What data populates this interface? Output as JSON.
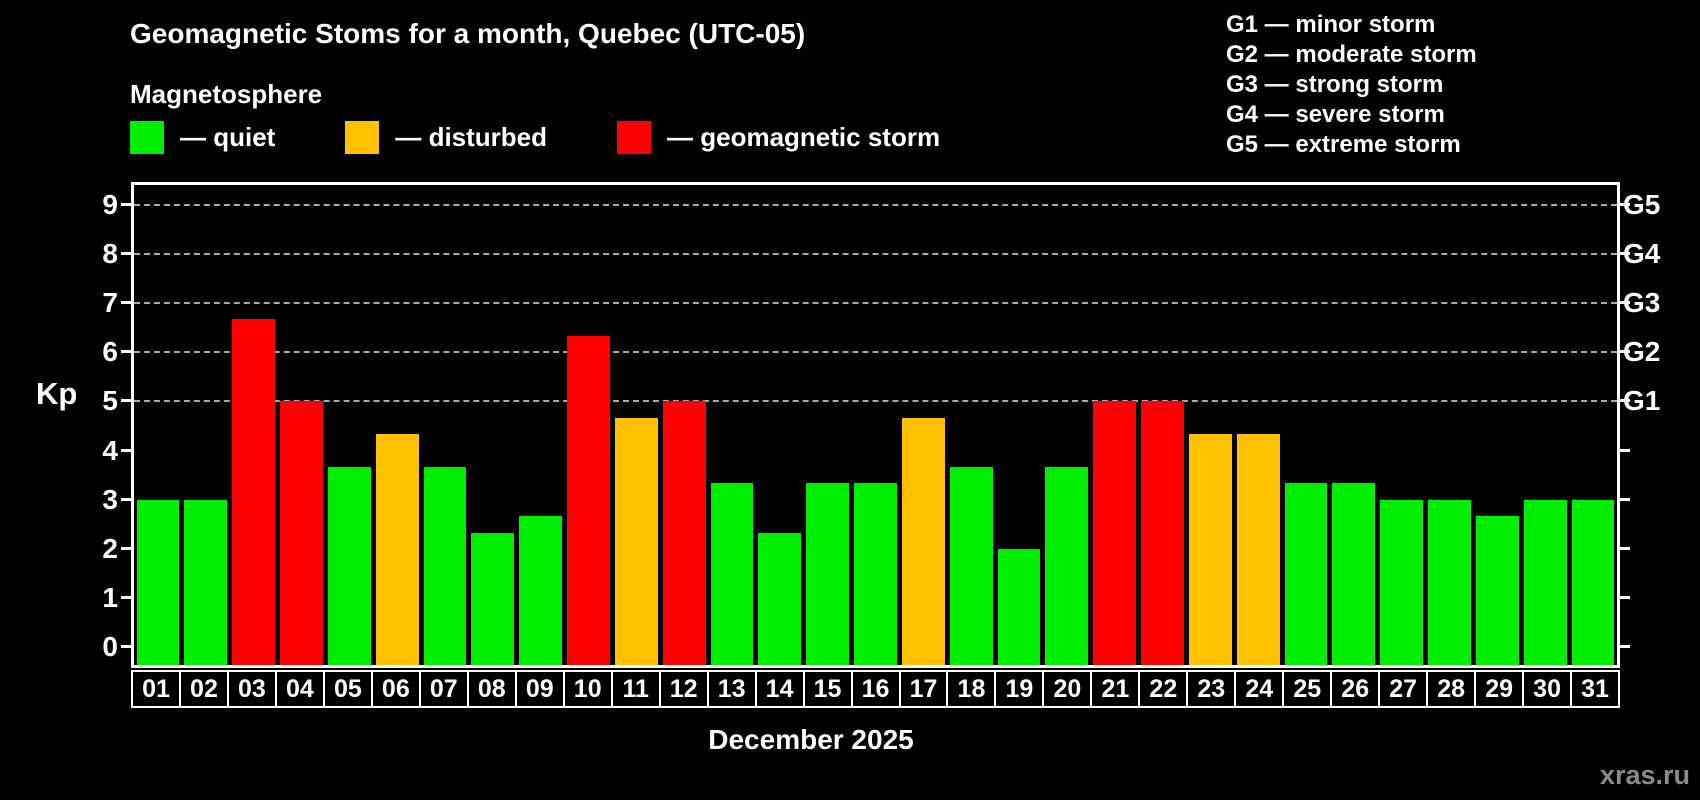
{
  "title": "Geomagnetic Stoms for a month, Quebec (UTC-05)",
  "subtitle": "Magnetosphere",
  "legend": [
    {
      "key": "quiet",
      "label": "— quiet",
      "color": "#00ee00"
    },
    {
      "key": "disturbed",
      "label": "— disturbed",
      "color": "#ffc000"
    },
    {
      "key": "storm",
      "label": "— geomagnetic storm",
      "color": "#ff0000"
    }
  ],
  "g_legend": [
    "G1 — minor storm",
    "G2 — moderate storm",
    "G3 — strong storm",
    "G4 — severe storm",
    "G5 — extreme storm"
  ],
  "ylabel": "Kp",
  "xlabel": "December 2025",
  "watermark": "xras.ru",
  "chart_data": {
    "type": "bar",
    "title": "Geomagnetic Stoms for a month, Quebec (UTC-05)",
    "xlabel": "December 2025",
    "ylabel": "Kp",
    "ylim": [
      0,
      9
    ],
    "yticks": [
      0,
      1,
      2,
      3,
      4,
      5,
      6,
      7,
      8,
      9
    ],
    "gridlines_at": [
      5,
      6,
      7,
      8,
      9
    ],
    "grid_style": "horizontal dashed at storm levels only",
    "legend_position": "top-left",
    "right_axis_labels": {
      "5": "G1",
      "6": "G2",
      "7": "G3",
      "8": "G4",
      "9": "G5"
    },
    "colors": {
      "quiet": "#00ee00",
      "disturbed": "#ffc000",
      "storm": "#ff0000"
    },
    "categories": [
      "01",
      "02",
      "03",
      "04",
      "05",
      "06",
      "07",
      "08",
      "09",
      "10",
      "11",
      "12",
      "13",
      "14",
      "15",
      "16",
      "17",
      "18",
      "19",
      "20",
      "21",
      "22",
      "23",
      "24",
      "25",
      "26",
      "27",
      "28",
      "29",
      "30",
      "31"
    ],
    "values": [
      3.0,
      3.0,
      6.67,
      5.0,
      3.67,
      4.33,
      3.67,
      2.33,
      2.67,
      6.33,
      4.67,
      5.0,
      3.33,
      2.33,
      3.33,
      3.33,
      4.67,
      3.67,
      2.0,
      3.67,
      5.0,
      5.0,
      4.33,
      4.33,
      3.33,
      3.33,
      3.0,
      3.0,
      2.67,
      3.0,
      3.0
    ],
    "statuses": [
      "quiet",
      "quiet",
      "storm",
      "storm",
      "quiet",
      "disturbed",
      "quiet",
      "quiet",
      "quiet",
      "storm",
      "disturbed",
      "storm",
      "quiet",
      "quiet",
      "quiet",
      "quiet",
      "disturbed",
      "quiet",
      "quiet",
      "quiet",
      "storm",
      "storm",
      "disturbed",
      "disturbed",
      "quiet",
      "quiet",
      "quiet",
      "quiet",
      "quiet",
      "quiet",
      "quiet"
    ]
  }
}
